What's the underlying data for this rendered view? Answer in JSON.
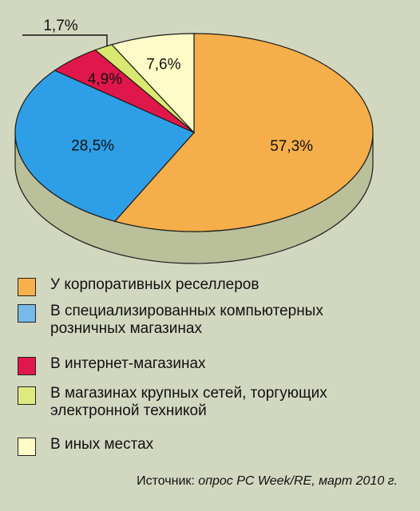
{
  "chart_data": {
    "type": "pie",
    "slices": [
      {
        "label": "У корпоративных реселлеров",
        "value": 57.3,
        "display": "57,3%",
        "color": "#f5ae4a"
      },
      {
        "label": "В специализированных компьютерных розничных магазинах",
        "value": 28.5,
        "display": "28,5%",
        "color": "#2e9fe6"
      },
      {
        "label": "В интернет-магазинах",
        "value": 4.9,
        "display": "4,9%",
        "color": "#e0174a"
      },
      {
        "label": "В магазинах крупных сетей, торгующих электронной техникой",
        "value": 1.7,
        "display": "1,7%",
        "color": "#d9e870"
      },
      {
        "label": "В иных местах",
        "value": 7.6,
        "display": "7,6%",
        "color": "#fefbc6"
      }
    ],
    "legend": [
      {
        "lines": [
          "У корпоративных реселлеров"
        ],
        "color": "#f8b04c"
      },
      {
        "lines": [
          "В специализированных компьютерных",
          "розничных магазинах"
        ],
        "color": "#77b9e8"
      },
      {
        "lines": [
          "В интернет-магазинах"
        ],
        "color": "#e0174a"
      },
      {
        "lines": [
          "В магазинах крупных сетей, торгующих",
          "электронной техникой"
        ],
        "color": "#dfea7e"
      },
      {
        "lines": [
          "В иных местах"
        ],
        "color": "#fefbc6"
      }
    ],
    "source_prefix": "Источник: ",
    "source_publication": "опрос PC Week/RE, март 2010 г."
  }
}
